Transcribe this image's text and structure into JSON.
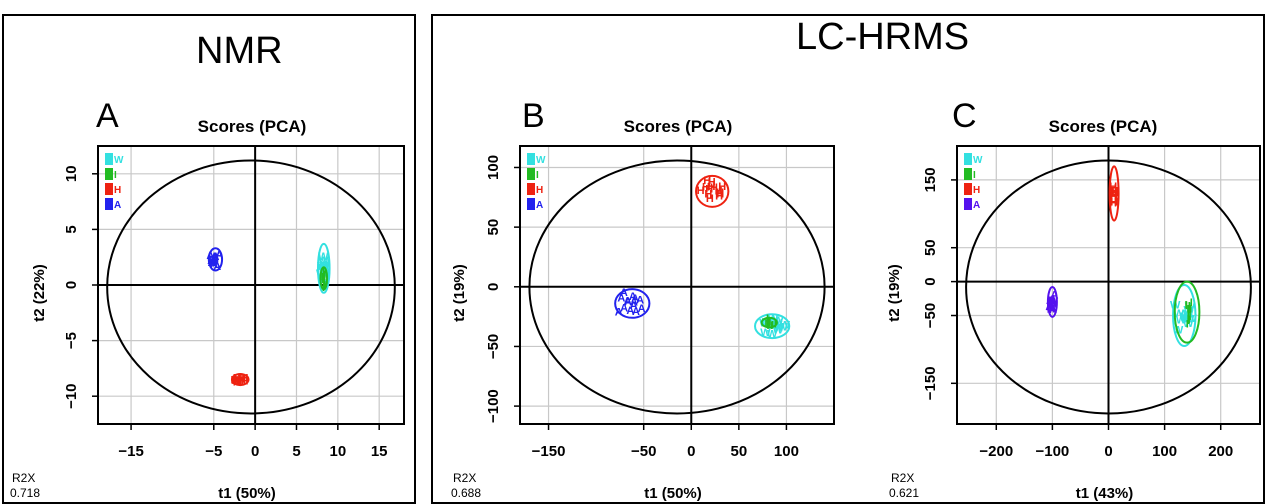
{
  "groups": {
    "nmr_title": "NMR",
    "lc_title": "LC-HRMS"
  },
  "chart_data": [
    {
      "type": "scatter",
      "panel": "A",
      "title": "Scores (PCA)",
      "xlabel": "t1 (50%)",
      "ylabel": "t2 (22%)",
      "xlim": [
        -19,
        18
      ],
      "ylim": [
        -12.5,
        12.5
      ],
      "xticks": [
        -15,
        -5,
        0,
        5,
        10,
        15
      ],
      "yticks": [
        -10,
        -5,
        0,
        5,
        10
      ],
      "r2x_label": "R2X",
      "r2x_value": "0.718",
      "legend": [
        {
          "label": "W",
          "color": "#33e0e0"
        },
        {
          "label": "I",
          "color": "#22bb22"
        },
        {
          "label": "H",
          "color": "#ee2211"
        },
        {
          "label": "A",
          "color": "#2222ee"
        }
      ],
      "series": [
        {
          "name": "W",
          "color": "#33e0e0",
          "center": [
            8.3,
            1.5
          ],
          "spread": [
            0.3,
            1.6
          ],
          "ellipse": [
            0.7,
            2.2
          ]
        },
        {
          "name": "I",
          "color": "#22bb22",
          "center": [
            8.3,
            0.6
          ],
          "spread": [
            0.2,
            0.6
          ],
          "ellipse": [
            0.4,
            1.0
          ]
        },
        {
          "name": "H",
          "color": "#ee2211",
          "center": [
            -1.8,
            -8.5
          ],
          "spread": [
            0.7,
            0.25
          ],
          "ellipse": [
            1.0,
            0.5
          ]
        },
        {
          "name": "A",
          "color": "#2222ee",
          "center": [
            -4.8,
            2.3
          ],
          "spread": [
            0.6,
            0.6
          ],
          "ellipse": [
            0.8,
            1.0
          ]
        }
      ]
    },
    {
      "type": "scatter",
      "panel": "B",
      "title": "Scores (PCA)",
      "xlabel": "t1 (50%)",
      "ylabel": "t2 (19%)",
      "xlim": [
        -180,
        150
      ],
      "ylim": [
        -115,
        118
      ],
      "xticks": [
        -150,
        -50,
        0,
        50,
        100
      ],
      "yticks": [
        -100,
        -50,
        0,
        50,
        100
      ],
      "r2x_label": "R2X",
      "r2x_value": "0.688",
      "legend": [
        {
          "label": "W",
          "color": "#33e0e0"
        },
        {
          "label": "I",
          "color": "#22bb22"
        },
        {
          "label": "H",
          "color": "#ee2211"
        },
        {
          "label": "A",
          "color": "#2222ee"
        }
      ],
      "series": [
        {
          "name": "W",
          "color": "#33e0e0",
          "center": [
            85,
            -33
          ],
          "spread": [
            15,
            8
          ],
          "ellipse": [
            18,
            10
          ]
        },
        {
          "name": "I",
          "color": "#22bb22",
          "center": [
            82,
            -30
          ],
          "spread": [
            6,
            3
          ],
          "ellipse": [
            8,
            4
          ]
        },
        {
          "name": "H",
          "color": "#ee2211",
          "center": [
            22,
            80
          ],
          "spread": [
            14,
            10
          ],
          "ellipse": [
            17,
            13
          ]
        },
        {
          "name": "A",
          "color": "#2222ee",
          "center": [
            -62,
            -14
          ],
          "spread": [
            15,
            9
          ],
          "ellipse": [
            18,
            12
          ]
        }
      ]
    },
    {
      "type": "scatter",
      "panel": "C",
      "title": "Scores (PCA)",
      "xlabel": "t1 (43%)",
      "ylabel": "t2 (19%)",
      "xlim": [
        -270,
        270
      ],
      "ylim": [
        -210,
        200
      ],
      "xticks": [
        -200,
        -100,
        0,
        100,
        200
      ],
      "yticks": [
        -150,
        -50,
        0,
        50,
        150
      ],
      "r2x_label": "R2X",
      "r2x_value": "0.621",
      "legend": [
        {
          "label": "W",
          "color": "#33e0e0"
        },
        {
          "label": "I",
          "color": "#22bb22"
        },
        {
          "label": "H",
          "color": "#ee2211"
        },
        {
          "label": "A",
          "color": "#5511ee"
        }
      ],
      "series": [
        {
          "name": "W",
          "color": "#33e0e0",
          "center": [
            135,
            -50
          ],
          "spread": [
            14,
            30
          ],
          "ellipse": [
            20,
            45
          ]
        },
        {
          "name": "I",
          "color": "#22bb22",
          "center": [
            140,
            -45
          ],
          "spread": [
            10,
            20
          ],
          "ellipse": [
            22,
            45
          ]
        },
        {
          "name": "H",
          "color": "#ee2211",
          "center": [
            10,
            130
          ],
          "spread": [
            4,
            22
          ],
          "ellipse": [
            8,
            40
          ]
        },
        {
          "name": "A",
          "color": "#5511ee",
          "center": [
            -100,
            -30
          ],
          "spread": [
            5,
            15
          ],
          "ellipse": [
            8,
            22
          ]
        }
      ]
    }
  ]
}
